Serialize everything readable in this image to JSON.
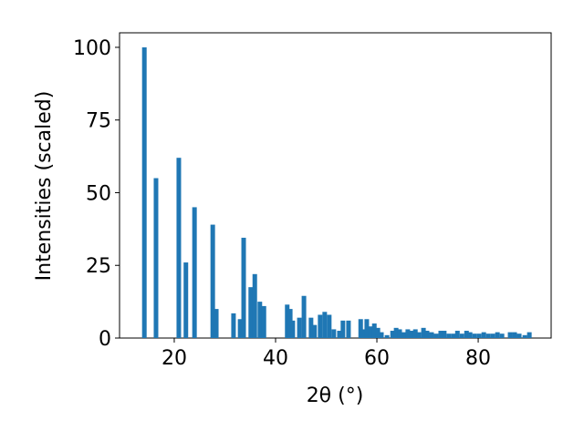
{
  "chart_data": {
    "type": "bar",
    "xlabel": "2θ (°)",
    "ylabel": "Intensities (scaled)",
    "color": "#1f77b4",
    "x": [
      14.1,
      16.4,
      20.9,
      22.3,
      24.0,
      27.6,
      28.3,
      31.7,
      33.0,
      33.7,
      35.1,
      35.9,
      36.9,
      37.7,
      42.3,
      42.9,
      43.4,
      44.7,
      45.6,
      47.0,
      47.7,
      48.8,
      49.7,
      50.6,
      51.5,
      52.6,
      53.3,
      54.4,
      56.8,
      57.3,
      58.0,
      58.7,
      59.5,
      60.2,
      60.9,
      62.0,
      63.1,
      63.8,
      64.5,
      65.4,
      66.1,
      66.8,
      67.6,
      68.3,
      69.2,
      69.9,
      70.8,
      71.7,
      72.6,
      73.3,
      74.2,
      75.1,
      75.9,
      76.8,
      77.7,
      78.4,
      79.3,
      80.2,
      81.1,
      82.0,
      82.9,
      83.8,
      84.7,
      86.3,
      87.2,
      88.1,
      89.2,
      90.1
    ],
    "values": [
      100,
      55,
      62,
      26,
      45,
      39,
      10,
      8.5,
      6.5,
      34.5,
      17.5,
      22,
      12.5,
      11,
      11.5,
      10,
      6,
      7,
      14.5,
      7,
      4.5,
      8,
      9,
      8,
      3,
      2.5,
      6,
      6,
      6.5,
      3,
      6.5,
      4,
      5,
      3.5,
      2,
      1,
      2.5,
      3.5,
      3,
      2,
      3,
      2.5,
      3,
      2,
      3.5,
      2.5,
      2,
      1.5,
      2.5,
      2.5,
      1.5,
      1.5,
      2.5,
      1.5,
      2.5,
      2,
      1.5,
      1.5,
      2,
      1.5,
      1.5,
      2,
      1.5,
      2,
      2,
      1.5,
      1,
      2
    ],
    "xlim": [
      9.2,
      94.4
    ],
    "ylim": [
      0,
      105
    ],
    "xticks": [
      20,
      40,
      60,
      80
    ],
    "yticks": [
      0,
      25,
      50,
      75,
      100
    ]
  }
}
